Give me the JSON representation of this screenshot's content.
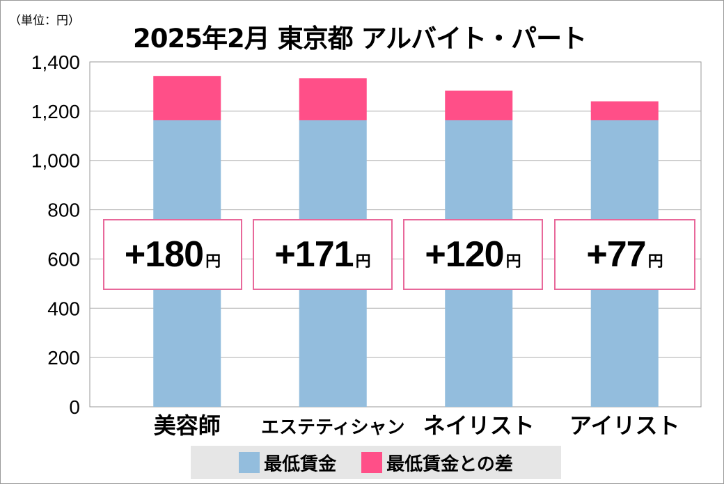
{
  "chart_data": {
    "type": "bar",
    "stacked": true,
    "title": "2025年2月 東京都 アルバイト・パート",
    "unit_label": "（単位：円）",
    "categories": [
      "美容師",
      "エステティシャン",
      "ネイリスト",
      "アイリスト"
    ],
    "series": [
      {
        "name": "最低賃金",
        "values": [
          1163,
          1163,
          1163,
          1163
        ],
        "color": "#93bddd"
      },
      {
        "name": "最低賃金との差",
        "values": [
          180,
          171,
          120,
          77
        ],
        "color": "#ff4f88"
      }
    ],
    "data_labels": [
      "+180",
      "+171",
      "+120",
      "+77"
    ],
    "data_label_unit": "円",
    "ylim": [
      0,
      1400
    ],
    "yticks": [
      "0",
      "200",
      "400",
      "600",
      "800",
      "1,000",
      "1,200",
      "1,400"
    ],
    "grid": true,
    "legend": "bottom"
  }
}
